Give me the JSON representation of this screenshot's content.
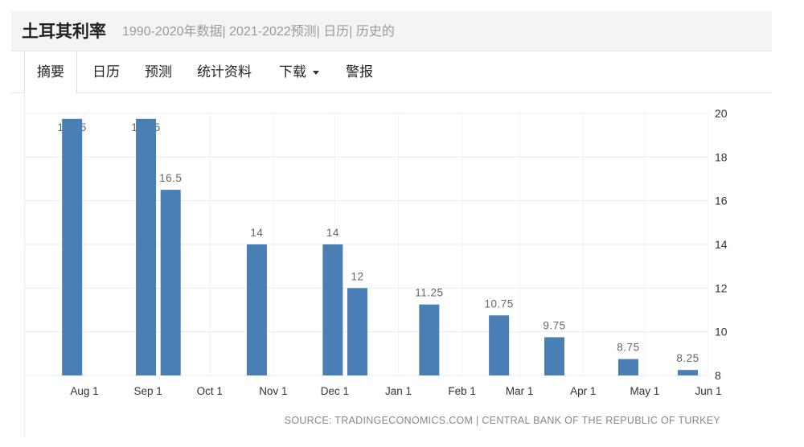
{
  "header": {
    "title": "土耳其利率",
    "links": [
      "1990-2020年数据",
      "2021-2022预测",
      "日历",
      "历史的"
    ],
    "separator": "| "
  },
  "tabs": [
    {
      "label": "摘要",
      "selected": true
    },
    {
      "label": "日历",
      "selected": false
    },
    {
      "label": "预测",
      "selected": false
    },
    {
      "label": "统计资料",
      "selected": false
    },
    {
      "label": "下载",
      "selected": false,
      "icon": "caret-down-icon"
    },
    {
      "label": "警报",
      "selected": false
    }
  ],
  "chart_data": {
    "type": "bar",
    "x_ticks": [
      "Aug 1",
      "Sep 1",
      "Oct 1",
      "Nov 1",
      "Dec 1",
      "Jan 1",
      "Feb 1",
      "Mar 1",
      "Apr 1",
      "May 1",
      "Jun 1"
    ],
    "points": [
      {
        "x": "Jul 26",
        "y": 19.75
      },
      {
        "x": "Aug 31",
        "y": 19.75
      },
      {
        "x": "Sep 12",
        "y": 16.5
      },
      {
        "x": "Oct 24",
        "y": 14
      },
      {
        "x": "Nov 30",
        "y": 14
      },
      {
        "x": "Dec 12",
        "y": 12
      },
      {
        "x": "Jan 16",
        "y": 11.25
      },
      {
        "x": "Feb 19",
        "y": 10.75
      },
      {
        "x": "Mar 18",
        "y": 9.75
      },
      {
        "x": "Apr 23",
        "y": 8.75
      },
      {
        "x": "May 22",
        "y": 8.25
      }
    ],
    "ylim": [
      8,
      20
    ],
    "y_ticks": [
      20,
      18,
      16,
      14,
      12,
      10,
      8
    ],
    "y_axis_position": "right",
    "grid": true,
    "legend": "none",
    "source": "SOURCE: TRADINGECONOMICS.COM | CENTRAL BANK OF THE REPUBLIC OF TURKEY"
  },
  "colors": {
    "bar": "#4a7fb5",
    "header_background": "#f4f4f4",
    "subtitle_text": "#9a9a9a",
    "source_text": "#888888"
  }
}
